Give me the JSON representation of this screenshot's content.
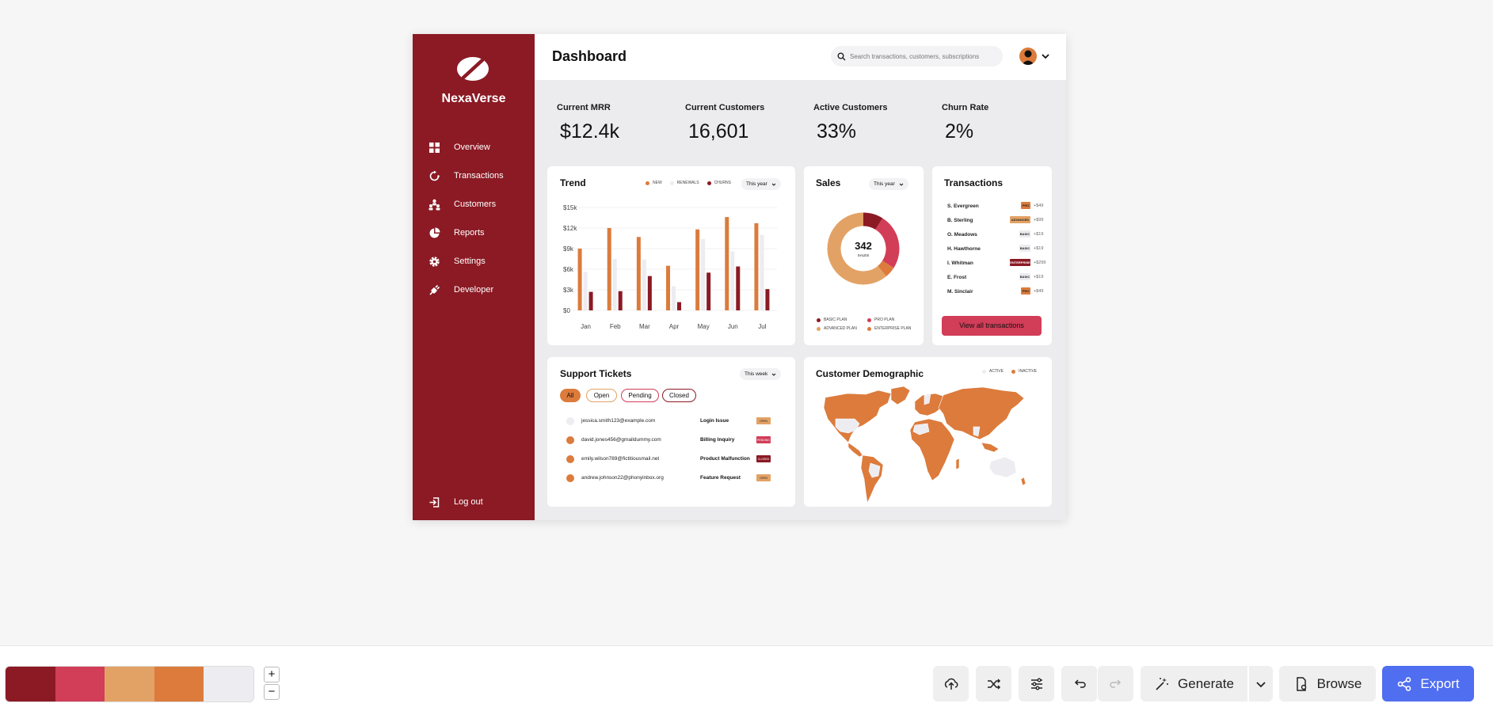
{
  "app": {
    "brand": "NexaVerse",
    "page_title": "Dashboard"
  },
  "search": {
    "placeholder": "Search transactions, customers, subscriptions",
    "value": ""
  },
  "sidebar": {
    "items": [
      {
        "label": "Overview",
        "icon": "grid-icon"
      },
      {
        "label": "Transactions",
        "icon": "refresh-icon"
      },
      {
        "label": "Customers",
        "icon": "users-icon"
      },
      {
        "label": "Reports",
        "icon": "pie-icon"
      },
      {
        "label": "Settings",
        "icon": "gear-icon"
      },
      {
        "label": "Developer",
        "icon": "plug-icon"
      }
    ],
    "logout": "Log out"
  },
  "stats": [
    {
      "label": "Current MRR",
      "value": "$12.4k",
      "color": "#d23d58"
    },
    {
      "label": "Current Customers",
      "value": "16,601",
      "color": "#e3a265"
    },
    {
      "label": "Active Customers",
      "value": "33%",
      "color": "#dc7b3c"
    },
    {
      "label": "Churn Rate",
      "value": "2%",
      "color": "#ececf1"
    }
  ],
  "trend": {
    "title": "Trend",
    "period": "This year",
    "legend": [
      "NEW",
      "RENEWALS",
      "CHURNS"
    ]
  },
  "chart_data": [
    {
      "type": "bar",
      "title": "Trend",
      "categories": [
        "Jan",
        "Feb",
        "Mar",
        "Apr",
        "May",
        "Jun",
        "Jul"
      ],
      "y_ticks": [
        "$15k",
        "$12k",
        "$9k",
        "$6k",
        "$3k",
        "$0"
      ],
      "ylim": [
        0,
        15000
      ],
      "series": [
        {
          "name": "NEW",
          "color": "#dc7b3c",
          "values": [
            9000,
            12000,
            10700,
            6500,
            11800,
            13600,
            12700
          ]
        },
        {
          "name": "RENEWALS",
          "color": "#ececf1",
          "values": [
            5600,
            7500,
            7400,
            3500,
            10400,
            8600,
            11000
          ]
        },
        {
          "name": "CHURNS",
          "color": "#8b1a24",
          "values": [
            2700,
            2800,
            5000,
            1200,
            5500,
            6400,
            3100
          ]
        }
      ],
      "grid": true
    },
    {
      "type": "pie",
      "title": "Sales",
      "center_value": "342",
      "center_label": "SALES",
      "series": [
        {
          "name": "BASIC PLAN",
          "value": 9,
          "color": "#8b1a24"
        },
        {
          "name": "PRO PLAN",
          "value": 25,
          "color": "#d23d58"
        },
        {
          "name": "ENTERPRISE PLAN",
          "value": 5,
          "color": "#dc7b3c"
        },
        {
          "name": "ADVANCED PLAN",
          "value": 61,
          "color": "#e3a265"
        }
      ]
    }
  ],
  "sales": {
    "title": "Sales",
    "period": "This year",
    "center_value": "342",
    "center_label": "SALES",
    "legend": [
      "BASIC PLAN",
      "PRO PLAN",
      "ADVANCED PLAN",
      "ENTERPRISE PLAN"
    ]
  },
  "transactions": {
    "title": "Transactions",
    "button": "View all transactions",
    "rows": [
      {
        "name": "S. Evergreen",
        "plan": "PRO",
        "amount": "+$49",
        "color": "#dc7b3c"
      },
      {
        "name": "B. Sterling",
        "plan": "ADVANCED",
        "amount": "+$99",
        "color": "#e3a265"
      },
      {
        "name": "O. Meadows",
        "plan": "BASIC",
        "amount": "+$19",
        "color": "#ececf1"
      },
      {
        "name": "H. Hawthorne",
        "plan": "BASIC",
        "amount": "+$19",
        "color": "#ececf1"
      },
      {
        "name": "I. Whitman",
        "plan": "ENTERPRISE",
        "amount": "+$299",
        "color": "#8b1a24"
      },
      {
        "name": "E. Frost",
        "plan": "BASIC",
        "amount": "+$19",
        "color": "#ececf1"
      },
      {
        "name": "M. Sinclair",
        "plan": "PRO",
        "amount": "+$49",
        "color": "#dc7b3c"
      }
    ]
  },
  "tickets": {
    "title": "Support Tickets",
    "period": "This week",
    "filters": [
      "All",
      "Open",
      "Pending",
      "Closed"
    ],
    "rows": [
      {
        "email": "jessica.smith123@example.com",
        "subject": "Login Issue",
        "status": "OPEN",
        "dot": "#ececf1",
        "status_color": "#e3a265"
      },
      {
        "email": "david.jones456@gmaildummy.com",
        "subject": "Billing Inquiry",
        "status": "PENDING",
        "dot": "#dc7b3c",
        "status_color": "#d23d58"
      },
      {
        "email": "emily.wilson789@fictitiousmail.net",
        "subject": "Product Malfunction",
        "status": "CLOSED",
        "dot": "#dc7b3c",
        "status_color": "#8b1a24"
      },
      {
        "email": "andrew.johnson22@phonyinbox.org",
        "subject": "Feature Request",
        "status": "OPEN",
        "dot": "#dc7b3c",
        "status_color": "#e3a265"
      }
    ]
  },
  "demographic": {
    "title": "Customer Demographic",
    "legend": [
      "ACTIVE",
      "INACTIVE"
    ]
  },
  "palette": [
    "#8b1a24",
    "#d23d58",
    "#e3a265",
    "#dc7b3c",
    "#ececf1"
  ],
  "toolbar": {
    "generate": "Generate",
    "browse": "Browse",
    "export": "Export",
    "zoom_in": "+",
    "zoom_out": "−"
  }
}
